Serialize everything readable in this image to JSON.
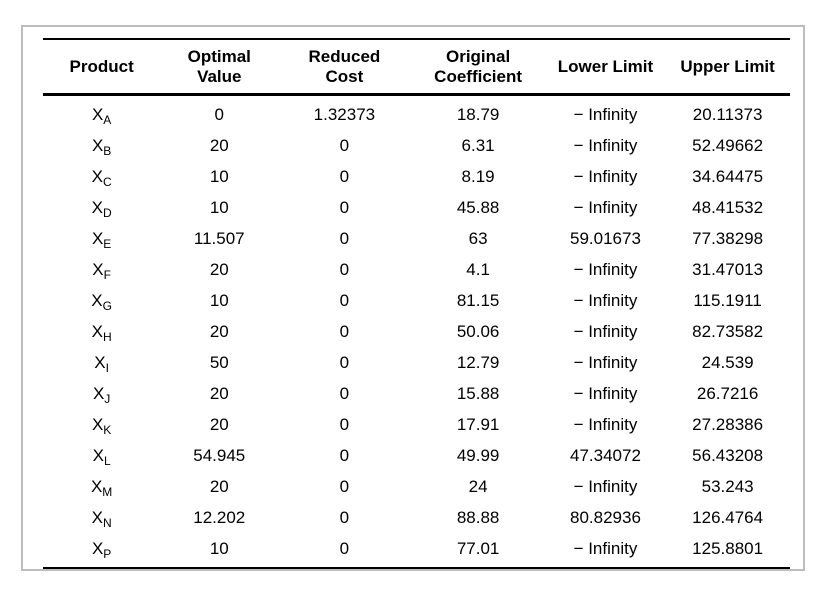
{
  "frame": {
    "border_color": "#bdbdbd",
    "background_color": "#ffffff",
    "rule_color": "#000000"
  },
  "table": {
    "columns": [
      {
        "key": "product",
        "label": "Product"
      },
      {
        "key": "optimal",
        "label": "Optimal\nValue"
      },
      {
        "key": "reduced",
        "label": "Reduced\nCost"
      },
      {
        "key": "original",
        "label": "Original\nCoefficient"
      },
      {
        "key": "lower",
        "label": "Lower Limit"
      },
      {
        "key": "upper",
        "label": "Upper Limit"
      }
    ],
    "rows": [
      {
        "product": {
          "base": "X",
          "sub": "A"
        },
        "values": [
          "0",
          "1.32373",
          "18.79",
          "− Infinity",
          "20.11373"
        ]
      },
      {
        "product": {
          "base": "X",
          "sub": "B"
        },
        "values": [
          "20",
          "0",
          "6.31",
          "− Infinity",
          "52.49662"
        ]
      },
      {
        "product": {
          "base": "X",
          "sub": "C"
        },
        "values": [
          "10",
          "0",
          "8.19",
          "− Infinity",
          "34.64475"
        ]
      },
      {
        "product": {
          "base": "X",
          "sub": "D"
        },
        "values": [
          "10",
          "0",
          "45.88",
          "− Infinity",
          "48.41532"
        ]
      },
      {
        "product": {
          "base": "X",
          "sub": "E"
        },
        "values": [
          "11.507",
          "0",
          "63",
          "59.01673",
          "77.38298"
        ]
      },
      {
        "product": {
          "base": "X",
          "sub": "F"
        },
        "values": [
          "20",
          "0",
          "4.1",
          "− Infinity",
          "31.47013"
        ]
      },
      {
        "product": {
          "base": "X",
          "sub": "G"
        },
        "values": [
          "10",
          "0",
          "81.15",
          "− Infinity",
          "115.1911"
        ]
      },
      {
        "product": {
          "base": "X",
          "sub": "H"
        },
        "values": [
          "20",
          "0",
          "50.06",
          "− Infinity",
          "82.73582"
        ]
      },
      {
        "product": {
          "base": "X",
          "sub": "I"
        },
        "values": [
          "50",
          "0",
          "12.79",
          "− Infinity",
          "24.539"
        ]
      },
      {
        "product": {
          "base": "X",
          "sub": "J"
        },
        "values": [
          "20",
          "0",
          "15.88",
          "− Infinity",
          "26.7216"
        ]
      },
      {
        "product": {
          "base": "X",
          "sub": "K"
        },
        "values": [
          "20",
          "0",
          "17.91",
          "− Infinity",
          "27.28386"
        ]
      },
      {
        "product": {
          "base": "X",
          "sub": "L"
        },
        "values": [
          "54.945",
          "0",
          "49.99",
          "47.34072",
          "56.43208"
        ]
      },
      {
        "product": {
          "base": "X",
          "sub": "M"
        },
        "values": [
          "20",
          "0",
          "24",
          "− Infinity",
          "53.243"
        ]
      },
      {
        "product": {
          "base": "X",
          "sub": "N"
        },
        "values": [
          "12.202",
          "0",
          "88.88",
          "80.82936",
          "126.4764"
        ]
      },
      {
        "product": {
          "base": "X",
          "sub": "P"
        },
        "values": [
          "10",
          "0",
          "77.01",
          "− Infinity",
          "125.8801"
        ]
      }
    ]
  },
  "chart_data": {
    "type": "table",
    "title": "",
    "columns": [
      "Product",
      "Optimal Value",
      "Reduced Cost",
      "Original Coefficient",
      "Lower Limit",
      "Upper Limit"
    ],
    "rows": [
      [
        "X_A",
        "0",
        "1.32373",
        "18.79",
        "− Infinity",
        "20.11373"
      ],
      [
        "X_B",
        "20",
        "0",
        "6.31",
        "− Infinity",
        "52.49662"
      ],
      [
        "X_C",
        "10",
        "0",
        "8.19",
        "− Infinity",
        "34.64475"
      ],
      [
        "X_D",
        "10",
        "0",
        "45.88",
        "− Infinity",
        "48.41532"
      ],
      [
        "X_E",
        "11.507",
        "0",
        "63",
        "59.01673",
        "77.38298"
      ],
      [
        "X_F",
        "20",
        "0",
        "4.1",
        "− Infinity",
        "31.47013"
      ],
      [
        "X_G",
        "10",
        "0",
        "81.15",
        "− Infinity",
        "115.1911"
      ],
      [
        "X_H",
        "20",
        "0",
        "50.06",
        "− Infinity",
        "82.73582"
      ],
      [
        "X_I",
        "50",
        "0",
        "12.79",
        "− Infinity",
        "24.539"
      ],
      [
        "X_J",
        "20",
        "0",
        "15.88",
        "− Infinity",
        "26.7216"
      ],
      [
        "X_K",
        "20",
        "0",
        "17.91",
        "− Infinity",
        "27.28386"
      ],
      [
        "X_L",
        "54.945",
        "0",
        "49.99",
        "47.34072",
        "56.43208"
      ],
      [
        "X_M",
        "20",
        "0",
        "24",
        "− Infinity",
        "53.243"
      ],
      [
        "X_N",
        "12.202",
        "0",
        "88.88",
        "80.82936",
        "126.4764"
      ],
      [
        "X_P",
        "10",
        "0",
        "77.01",
        "− Infinity",
        "125.8801"
      ]
    ]
  }
}
